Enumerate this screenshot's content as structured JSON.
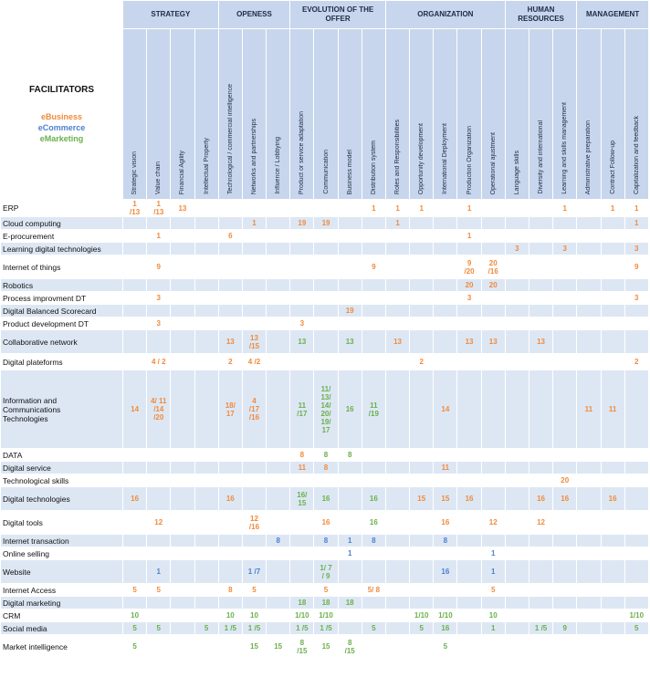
{
  "corner_label": "FACILITATORS",
  "legend": [
    {
      "label": "eBusiness",
      "color": "#f08a3c"
    },
    {
      "label": "eCommerce",
      "color": "#4d7fd0"
    },
    {
      "label": "eMarketing",
      "color": "#6ab04c"
    }
  ],
  "colors": {
    "eBusiness": "#f08a3c",
    "eCommerce": "#4d7fd0",
    "eMarketing": "#6ab04c",
    "header_bg": "#c7d6ec",
    "stripe_bg": "#dde7f4"
  },
  "groups": [
    {
      "label": "STRATEGY",
      "span": 4
    },
    {
      "label": "OPENESS",
      "span": 3
    },
    {
      "label": "EVOLUTION OF THE OFFER",
      "span": 4
    },
    {
      "label": "ORGANIZATION",
      "span": 5
    },
    {
      "label": "HUMAN RESOURCES",
      "span": 3
    },
    {
      "label": "MANAGEMENT",
      "span": 3
    }
  ],
  "columns": [
    "Strategic vision",
    "Value chain",
    "Financial Agility",
    "Intellectual Property",
    "Technological / commercial intelligence",
    "Networks and partnerships",
    "Influence / Lobbying",
    "Product or service adaptation",
    "Communication",
    "Business model",
    "Distribution system",
    "Roles and Responsibilities",
    "Opportunity development",
    "International Deployment",
    "Production Organization",
    "Operational ajustment",
    "Language skills",
    "Diversity and international",
    "Learning and skills management",
    "Administrative preparation",
    "Contract Follow-up",
    "Capitalization and feedback"
  ],
  "rows": [
    {
      "label": "ERP",
      "cells": {
        "0": [
          "o",
          "1\n/13"
        ],
        "1": [
          "o",
          "1\n/13"
        ],
        "2": [
          "o",
          "13"
        ],
        "10": [
          "o",
          "1"
        ],
        "11": [
          "o",
          "1"
        ],
        "12": [
          "o",
          "1"
        ],
        "14": [
          "o",
          "1"
        ],
        "18": [
          "o",
          "1"
        ],
        "20": [
          "o",
          "1"
        ],
        "21": [
          "o",
          "1"
        ]
      }
    },
    {
      "label": "Cloud computing",
      "cells": {
        "5": [
          "o",
          "1"
        ],
        "7": [
          "o",
          "19"
        ],
        "8": [
          "o",
          "19"
        ],
        "11": [
          "o",
          "1"
        ],
        "21": [
          "o",
          "1"
        ]
      }
    },
    {
      "label": "E-procurement",
      "cells": {
        "1": [
          "o",
          "1"
        ],
        "4": [
          "o",
          "6"
        ],
        "14": [
          "o",
          "1"
        ]
      }
    },
    {
      "label": "Learning digital technologies",
      "cells": {
        "16": [
          "o",
          "3"
        ],
        "18": [
          "o",
          "3"
        ],
        "21": [
          "o",
          "3"
        ]
      }
    },
    {
      "label": "Internet of things",
      "cells": {
        "1": [
          "o",
          "9"
        ],
        "10": [
          "o",
          "9"
        ],
        "14": [
          "o",
          "9\n/20"
        ],
        "15": [
          "o",
          "20\n/16"
        ],
        "21": [
          "o",
          "9"
        ]
      }
    },
    {
      "label": "Robotics",
      "cells": {
        "14": [
          "o",
          "20"
        ],
        "15": [
          "o",
          "20"
        ]
      }
    },
    {
      "label": "Process improvment DT",
      "cells": {
        "1": [
          "o",
          "3"
        ],
        "14": [
          "o",
          "3"
        ],
        "21": [
          "o",
          "3"
        ]
      }
    },
    {
      "label": "Digital Balanced Scorecard",
      "cells": {
        "9": [
          "o",
          "19"
        ]
      }
    },
    {
      "label": "Product development DT",
      "cells": {
        "1": [
          "o",
          "3"
        ],
        "7": [
          "o",
          "3"
        ]
      }
    },
    {
      "label": "Collaborative network",
      "cells": {
        "4": [
          "o",
          "13"
        ],
        "5": [
          "o",
          "13\n/15"
        ],
        "7": [
          "g",
          "13"
        ],
        "9": [
          "g",
          "13"
        ],
        "11": [
          "o",
          "13"
        ],
        "14": [
          "o",
          "13"
        ],
        "15": [
          "o",
          "13"
        ],
        "17": [
          "o",
          "13"
        ]
      }
    },
    {
      "label": "Digital plateforms",
      "cells": {
        "1": [
          "o",
          "4 / 2"
        ],
        "4": [
          "o",
          "2"
        ],
        "5": [
          "o",
          "4 /2"
        ],
        "12": [
          "o",
          "2"
        ],
        "21": [
          "o",
          "2"
        ]
      }
    },
    {
      "label": "Information and\nCommunications\nTechnologies",
      "cells": {
        "0": [
          "o",
          "14"
        ],
        "1": [
          "o",
          "4/ 11\n/14\n/20"
        ],
        "4": [
          "o",
          "18/\n17"
        ],
        "5": [
          "o",
          "4\n/17\n/16"
        ],
        "7": [
          "g",
          "11\n/17"
        ],
        "8": [
          "g",
          "11/\n13/\n14/\n20/\n19/\n17"
        ],
        "9": [
          "g",
          "16"
        ],
        "10": [
          "g",
          "11\n/19"
        ],
        "13": [
          "o",
          "14"
        ],
        "19": [
          "o",
          "11"
        ],
        "20": [
          "o",
          "11"
        ]
      }
    },
    {
      "label": "DATA",
      "cells": {
        "7": [
          "o",
          "8"
        ],
        "8": [
          "g",
          "8"
        ],
        "9": [
          "g",
          "8"
        ]
      }
    },
    {
      "label": "Digital service",
      "cells": {
        "7": [
          "o",
          "11"
        ],
        "8": [
          "o",
          "8"
        ],
        "13": [
          "o",
          "11"
        ]
      }
    },
    {
      "label": "Technological skills",
      "cells": {
        "18": [
          "o",
          "20"
        ]
      }
    },
    {
      "label": "Digital technologies",
      "cells": {
        "0": [
          "o",
          "16"
        ],
        "4": [
          "o",
          "16"
        ],
        "7": [
          "g",
          "16/\n15"
        ],
        "8": [
          "g",
          "16"
        ],
        "10": [
          "g",
          "16"
        ],
        "12": [
          "o",
          "15"
        ],
        "13": [
          "o",
          "15"
        ],
        "14": [
          "o",
          "16"
        ],
        "17": [
          "o",
          "16"
        ],
        "18": [
          "o",
          "16"
        ],
        "20": [
          "o",
          "16"
        ]
      }
    },
    {
      "label": "Digital tools",
      "cells": {
        "1": [
          "o",
          "12"
        ],
        "5": [
          "o",
          "12\n/16"
        ],
        "8": [
          "o",
          "16"
        ],
        "10": [
          "g",
          "16"
        ],
        "13": [
          "o",
          "16"
        ],
        "15": [
          "o",
          "12"
        ],
        "17": [
          "o",
          "12"
        ]
      }
    },
    {
      "label": "Internet transaction",
      "cells": {
        "6": [
          "b",
          "8"
        ],
        "8": [
          "b",
          "8"
        ],
        "9": [
          "b",
          "1"
        ],
        "10": [
          "b",
          "8"
        ],
        "13": [
          "b",
          "8"
        ]
      }
    },
    {
      "label": "Online selling",
      "cells": {
        "9": [
          "b",
          "1"
        ],
        "15": [
          "b",
          "1"
        ]
      }
    },
    {
      "label": "Website",
      "cells": {
        "1": [
          "b",
          "1"
        ],
        "5": [
          "b",
          "1 /7"
        ],
        "8": [
          "g",
          "1/ 7\n/ 9"
        ],
        "13": [
          "b",
          "16"
        ],
        "15": [
          "b",
          "1"
        ]
      }
    },
    {
      "label": "Internet Access",
      "cells": {
        "0": [
          "o",
          "5"
        ],
        "1": [
          "o",
          "5"
        ],
        "4": [
          "o",
          "8"
        ],
        "5": [
          "o",
          "5"
        ],
        "8": [
          "o",
          "5"
        ],
        "10": [
          "o",
          "5/ 8"
        ],
        "15": [
          "o",
          "5"
        ]
      }
    },
    {
      "label": "Digital marketing",
      "cells": {
        "7": [
          "g",
          "18"
        ],
        "8": [
          "g",
          "18"
        ],
        "9": [
          "g",
          "18"
        ]
      }
    },
    {
      "label": "CRM",
      "cells": {
        "0": [
          "g",
          "10"
        ],
        "4": [
          "g",
          "10"
        ],
        "5": [
          "g",
          "10"
        ],
        "7": [
          "g",
          "1/10"
        ],
        "8": [
          "g",
          "1/10"
        ],
        "12": [
          "g",
          "1/10"
        ],
        "13": [
          "g",
          "1/10"
        ],
        "15": [
          "g",
          "10"
        ],
        "21": [
          "g",
          "1/10"
        ]
      }
    },
    {
      "label": "Social media",
      "cells": {
        "0": [
          "g",
          "5"
        ],
        "1": [
          "g",
          "5"
        ],
        "3": [
          "g",
          "5"
        ],
        "4": [
          "g",
          "1 /5"
        ],
        "5": [
          "g",
          "1 /5"
        ],
        "7": [
          "g",
          "1 /5"
        ],
        "8": [
          "g",
          "1 /5"
        ],
        "10": [
          "g",
          "5"
        ],
        "12": [
          "g",
          "5"
        ],
        "13": [
          "g",
          "16"
        ],
        "15": [
          "g",
          "1"
        ],
        "17": [
          "g",
          "1 /5"
        ],
        "18": [
          "g",
          "9"
        ],
        "21": [
          "g",
          "5"
        ]
      }
    },
    {
      "label": "Market intelligence",
      "cells": {
        "0": [
          "g",
          "5"
        ],
        "5": [
          "g",
          "15"
        ],
        "6": [
          "g",
          "15"
        ],
        "7": [
          "g",
          "8\n/15"
        ],
        "8": [
          "g",
          "15"
        ],
        "9": [
          "g",
          "8\n/15"
        ],
        "13": [
          "g",
          "5"
        ]
      }
    }
  ]
}
